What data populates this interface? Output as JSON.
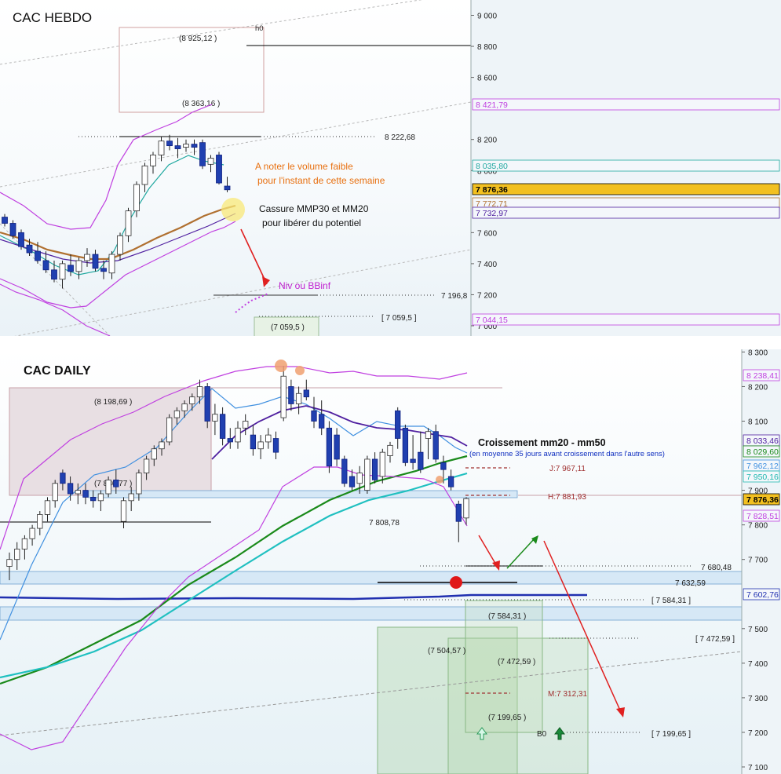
{
  "weekly": {
    "title": "CAC HEBDO",
    "axis_ticks": [
      "9 000",
      "8 800",
      "8 600",
      "8 200",
      "8 000",
      "7 600",
      "7 400",
      "7 200",
      "7 000"
    ],
    "price_tags": [
      {
        "text": "8 421,79",
        "color": "#c040e0"
      },
      {
        "text": "8 035,80",
        "color": "#20a8a0"
      },
      {
        "text": "7 876,36",
        "color": "#000000",
        "bg": "#f2c020"
      },
      {
        "text": "7 772,71",
        "color": "#b07030"
      },
      {
        "text": "7 732,97",
        "color": "#5020a0"
      },
      {
        "text": "7 044,15",
        "color": "#c040e0"
      }
    ],
    "labels": {
      "box_top": "(8 925,12 )",
      "box_bottom": "(8 363,16 )",
      "h0": "h0",
      "resistance": "8 222,68",
      "target": "7 196,8",
      "low_box": "(7 059,5 )",
      "low_bracket": "[ 7 059,5  ]",
      "note_line1": "A noter le volume faible",
      "note_line2": "pour l'instant de cette semaine",
      "break_line1": "Cassure MMP30 et MM20",
      "break_line2": "pour libérer du potentiel",
      "niv": "Niv ou BBinf"
    },
    "colors": {
      "note": "#e87010",
      "niv": "#c020d0",
      "arrow": "#e02020"
    }
  },
  "daily": {
    "title": "CAC DAILY",
    "axis_ticks": [
      "8 300",
      "8 200",
      "8 100",
      "7 900",
      "7 800",
      "7 700",
      "7 500",
      "7 400",
      "7 300",
      "7 200",
      "7 100"
    ],
    "price_tags": [
      {
        "text": "8 238,41",
        "color": "#c040e0"
      },
      {
        "text": "8 033,46",
        "color": "#5020a0"
      },
      {
        "text": "8 029,60",
        "color": "#1a8a1a"
      },
      {
        "text": "7 962,12",
        "color": "#4090e0"
      },
      {
        "text": "7 950,16",
        "color": "#20b8b0"
      },
      {
        "text": "7 876,36",
        "color": "#000000",
        "bg": "#f2c020"
      },
      {
        "text": "7 828,51",
        "color": "#c040e0"
      },
      {
        "text": "7 602,76",
        "color": "#2030b0"
      }
    ],
    "labels": {
      "box_high": "(8 198,69 )",
      "box_low": "(7 886,77 )",
      "j_level": "J:7 967,11",
      "h_level": "H:7 881,93",
      "level_7808": "7 808,78",
      "level_7680": "7 680,48",
      "level_7632": "7 632,59",
      "level_7584": "[ 7 584,31 ]",
      "box_7584": "(7 584,31 )",
      "box_7504": "(7 504,57 )",
      "box_7472": "(7 472,59 )",
      "level_7472": "[ 7 472,59 ]",
      "m_level": "M:7 312,31",
      "box_7199": "(7 199,65 )",
      "b0": "B0",
      "level_7199": "[ 7 199,65 ]",
      "cross_title": "Croissement mm20 - mm50",
      "cross_sub": "(en moyenne 35 jours avant croissement dans l'autre sens)"
    },
    "colors": {
      "cross_sub": "#1030c0",
      "level_red": "#a03030",
      "arrow_red": "#e02020",
      "arrow_green": "#1a8a1a"
    }
  },
  "chart_data": [
    {
      "type": "candlestick",
      "title": "CAC HEBDO",
      "ylim": [
        7000,
        9050
      ],
      "candles": [
        [
          7700,
          7720,
          7640,
          7660
        ],
        [
          7660,
          7680,
          7560,
          7580
        ],
        [
          7600,
          7620,
          7490,
          7510
        ],
        [
          7520,
          7560,
          7450,
          7470
        ],
        [
          7480,
          7540,
          7400,
          7420
        ],
        [
          7420,
          7480,
          7340,
          7360
        ],
        [
          7360,
          7420,
          7280,
          7300
        ],
        [
          7300,
          7420,
          7240,
          7400
        ],
        [
          7390,
          7460,
          7320,
          7350
        ],
        [
          7350,
          7440,
          7300,
          7420
        ],
        [
          7420,
          7500,
          7380,
          7460
        ],
        [
          7460,
          7490,
          7350,
          7370
        ],
        [
          7370,
          7420,
          7300,
          7350
        ],
        [
          7340,
          7480,
          7300,
          7460
        ],
        [
          7460,
          7600,
          7420,
          7580
        ],
        [
          7580,
          7760,
          7540,
          7740
        ],
        [
          7740,
          7930,
          7700,
          7910
        ],
        [
          7910,
          8050,
          7860,
          8030
        ],
        [
          8030,
          8120,
          7980,
          8100
        ],
        [
          8100,
          8220,
          8060,
          8190
        ],
        [
          8190,
          8230,
          8130,
          8160
        ],
        [
          8160,
          8210,
          8080,
          8140
        ],
        [
          8150,
          8200,
          8120,
          8170
        ],
        [
          8170,
          8200,
          8100,
          8150
        ],
        [
          8180,
          8200,
          8010,
          8030
        ],
        [
          8040,
          8100,
          7990,
          8080
        ],
        [
          8100,
          8120,
          7910,
          7920
        ],
        [
          7900,
          7960,
          7860,
          7876
        ]
      ]
    },
    {
      "type": "candlestick",
      "title": "CAC DAILY",
      "ylim": [
        7090,
        8310
      ],
      "candles": [
        [
          7680,
          7720,
          7640,
          7700
        ],
        [
          7700,
          7750,
          7670,
          7730
        ],
        [
          7730,
          7770,
          7700,
          7760
        ],
        [
          7760,
          7800,
          7740,
          7790
        ],
        [
          7790,
          7840,
          7770,
          7830
        ],
        [
          7830,
          7880,
          7810,
          7870
        ],
        [
          7870,
          7930,
          7850,
          7920
        ],
        [
          7950,
          7960,
          7900,
          7920
        ],
        [
          7920,
          7940,
          7870,
          7890
        ],
        [
          7890,
          7920,
          7860,
          7900
        ],
        [
          7900,
          7920,
          7860,
          7880
        ],
        [
          7880,
          7900,
          7850,
          7870
        ],
        [
          7870,
          7900,
          7840,
          7890
        ],
        [
          7890,
          7940,
          7880,
          7930
        ],
        [
          7930,
          7960,
          7890,
          7910
        ],
        [
          7810,
          7880,
          7790,
          7870
        ],
        [
          7870,
          7910,
          7840,
          7890
        ],
        [
          7890,
          7960,
          7870,
          7950
        ],
        [
          7950,
          8000,
          7930,
          7990
        ],
        [
          7990,
          8030,
          7970,
          8020
        ],
        [
          8020,
          8050,
          8000,
          8040
        ],
        [
          8040,
          8120,
          8030,
          8110
        ],
        [
          8110,
          8140,
          8090,
          8130
        ],
        [
          8130,
          8160,
          8110,
          8150
        ],
        [
          8150,
          8180,
          8130,
          8170
        ],
        [
          8170,
          8220,
          8150,
          8200
        ],
        [
          8200,
          8210,
          8080,
          8100
        ],
        [
          8100,
          8150,
          8060,
          8120
        ],
        [
          8120,
          8140,
          8030,
          8050
        ],
        [
          8050,
          8080,
          8020,
          8040
        ],
        [
          8040,
          8100,
          8020,
          8080
        ],
        [
          8080,
          8120,
          8060,
          8100
        ],
        [
          8060,
          8090,
          8000,
          8020
        ],
        [
          8020,
          8060,
          7990,
          8040
        ],
        [
          8040,
          8080,
          8020,
          8060
        ],
        [
          8050,
          8070,
          7990,
          8010
        ],
        [
          8110,
          8260,
          8100,
          8230
        ],
        [
          8200,
          8220,
          8130,
          8150
        ],
        [
          8150,
          8200,
          8120,
          8180
        ],
        [
          8190,
          8220,
          8160,
          8170
        ],
        [
          8130,
          8170,
          8080,
          8100
        ],
        [
          8120,
          8160,
          8060,
          8080
        ],
        [
          8080,
          8100,
          7950,
          7970
        ],
        [
          8060,
          8080,
          7970,
          7990
        ],
        [
          7990,
          8000,
          7910,
          7920
        ],
        [
          7940,
          7960,
          7900,
          7910
        ],
        [
          7920,
          7970,
          7890,
          7950
        ],
        [
          7900,
          8000,
          7890,
          7990
        ],
        [
          7990,
          8010,
          7920,
          7930
        ],
        [
          7940,
          8020,
          7920,
          8010
        ],
        [
          8000,
          8040,
          7980,
          8030
        ],
        [
          8130,
          8140,
          8020,
          8050
        ],
        [
          8080,
          8090,
          7970,
          7980
        ],
        [
          7990,
          8060,
          7960,
          7980
        ],
        [
          8010,
          8070,
          7950,
          7960
        ],
        [
          8050,
          8080,
          7990,
          8070
        ],
        [
          8070,
          8090,
          7980,
          7990
        ],
        [
          7980,
          8000,
          7920,
          7960
        ],
        [
          7940,
          7960,
          7900,
          7910
        ],
        [
          7860,
          7870,
          7750,
          7810
        ],
        [
          7820,
          7880,
          7800,
          7876
        ]
      ],
      "levels": [
        7967.11,
        7881.93,
        7808.78,
        7680.48,
        7632.59,
        7584.31,
        7504.57,
        7472.59,
        7312.31,
        7199.65
      ]
    }
  ]
}
